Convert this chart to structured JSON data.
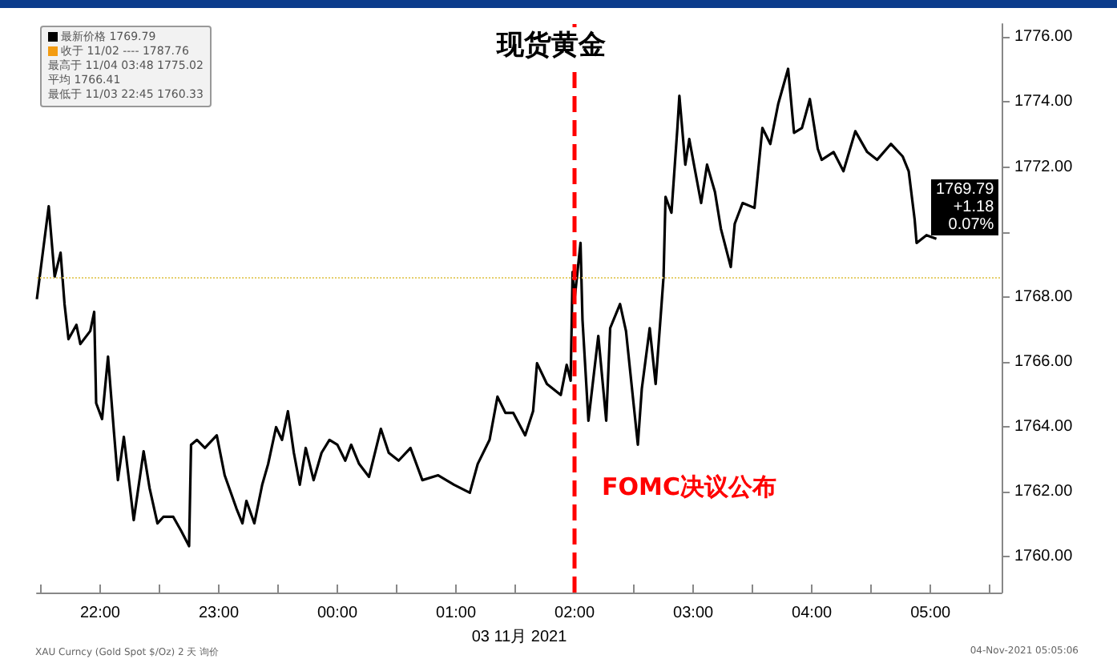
{
  "chart_data": {
    "type": "line",
    "title": "现货黄金",
    "xlabel": "03 11月 2021",
    "x": [
      "2021-11-03T21:28",
      "2021-11-03T21:34",
      "2021-11-03T21:37",
      "2021-11-03T21:40",
      "2021-11-03T21:42",
      "2021-11-03T21:44",
      "2021-11-03T21:48",
      "2021-11-03T21:50",
      "2021-11-03T21:55",
      "2021-11-03T21:57",
      "2021-11-03T21:58",
      "2021-11-03T22:01",
      "2021-11-03T22:04",
      "2021-11-03T22:07",
      "2021-11-03T22:09",
      "2021-11-03T22:12",
      "2021-11-03T22:17",
      "2021-11-03T22:22",
      "2021-11-03T22:25",
      "2021-11-03T22:29",
      "2021-11-03T22:32",
      "2021-11-03T22:37",
      "2021-11-03T22:41",
      "2021-11-03T22:45",
      "2021-11-03T22:46",
      "2021-11-03T22:49",
      "2021-11-03T22:53",
      "2021-11-03T22:59",
      "2021-11-03T23:03",
      "2021-11-03T23:09",
      "2021-11-03T23:12",
      "2021-11-03T23:14",
      "2021-11-03T23:18",
      "2021-11-03T23:22",
      "2021-11-03T23:25",
      "2021-11-03T23:29",
      "2021-11-03T23:32",
      "2021-11-03T23:35",
      "2021-11-03T23:38",
      "2021-11-03T23:41",
      "2021-11-03T23:44",
      "2021-11-03T23:48",
      "2021-11-03T23:52",
      "2021-11-03T23:56",
      "2021-11-04T00:00",
      "2021-11-04T00:04",
      "2021-11-04T00:07",
      "2021-11-04T00:11",
      "2021-11-04T00:16",
      "2021-11-04T00:22",
      "2021-11-04T00:26",
      "2021-11-04T00:31",
      "2021-11-04T00:37",
      "2021-11-04T00:43",
      "2021-11-04T00:51",
      "2021-11-04T00:59",
      "2021-11-04T01:07",
      "2021-11-04T01:11",
      "2021-11-04T01:17",
      "2021-11-04T01:21",
      "2021-11-04T01:25",
      "2021-11-04T01:29",
      "2021-11-04T01:35",
      "2021-11-04T01:39",
      "2021-11-04T01:41",
      "2021-11-04T01:46",
      "2021-11-04T01:53",
      "2021-11-04T01:56",
      "2021-11-04T01:58",
      "2021-11-04T01:59",
      "2021-11-04T02:00",
      "2021-11-04T02:03",
      "2021-11-04T02:04",
      "2021-11-04T02:07",
      "2021-11-04T02:12",
      "2021-11-04T02:16",
      "2021-11-04T02:18",
      "2021-11-04T02:23",
      "2021-11-04T02:26",
      "2021-11-04T02:32",
      "2021-11-04T02:34",
      "2021-11-04T02:38",
      "2021-11-04T02:41",
      "2021-11-04T02:44",
      "2021-11-04T02:45",
      "2021-11-04T02:46",
      "2021-11-04T02:49",
      "2021-11-04T02:52",
      "2021-11-04T02:53",
      "2021-11-04T02:56",
      "2021-11-04T02:58",
      "2021-11-04T03:01",
      "2021-11-04T03:04",
      "2021-11-04T03:07",
      "2021-11-04T03:11",
      "2021-11-04T03:14",
      "2021-11-04T03:19",
      "2021-11-04T03:21",
      "2021-11-04T03:25",
      "2021-11-04T03:31",
      "2021-11-04T03:35",
      "2021-11-04T03:39",
      "2021-11-04T03:43",
      "2021-11-04T03:48",
      "2021-11-04T03:51",
      "2021-11-04T03:55",
      "2021-11-04T03:59",
      "2021-11-04T04:03",
      "2021-11-04T04:05",
      "2021-11-04T04:11",
      "2021-11-04T04:16",
      "2021-11-04T04:22",
      "2021-11-04T04:28",
      "2021-11-04T04:33",
      "2021-11-04T04:40",
      "2021-11-04T04:46",
      "2021-11-04T04:49",
      "2021-11-04T04:52",
      "2021-11-04T04:53",
      "2021-11-04T04:58",
      "2021-11-04T05:03"
    ],
    "series": [
      {
        "color": "#000000",
        "values": [
          1767.93,
          1770.79,
          1768.62,
          1769.36,
          1767.78,
          1766.7,
          1767.14,
          1766.55,
          1766.95,
          1767.54,
          1764.73,
          1764.24,
          1766.16,
          1763.84,
          1762.36,
          1763.69,
          1761.13,
          1763.25,
          1762.12,
          1761.03,
          1761.23,
          1761.23,
          1760.8,
          1760.33,
          1763.45,
          1763.6,
          1763.35,
          1763.74,
          1762.51,
          1761.48,
          1761.03,
          1761.72,
          1761.03,
          1762.22,
          1762.86,
          1763.99,
          1763.6,
          1764.48,
          1763.2,
          1762.22,
          1763.35,
          1762.36,
          1763.2,
          1763.6,
          1763.45,
          1762.96,
          1763.45,
          1762.86,
          1762.46,
          1763.94,
          1763.2,
          1762.96,
          1763.35,
          1762.36,
          1762.51,
          1762.22,
          1761.97,
          1762.86,
          1763.6,
          1764.93,
          1764.43,
          1764.43,
          1763.74,
          1764.48,
          1765.96,
          1765.32,
          1764.98,
          1765.91,
          1765.42,
          1768.77,
          1767.93,
          1769.66,
          1767.29,
          1764.19,
          1766.8,
          1764.19,
          1767.04,
          1767.78,
          1766.95,
          1763.45,
          1765.17,
          1767.04,
          1765.32,
          1767.78,
          1768.62,
          1771.08,
          1770.59,
          1773.2,
          1774.19,
          1772.07,
          1772.86,
          1771.87,
          1770.89,
          1772.07,
          1771.23,
          1770.1,
          1768.92,
          1770.25,
          1770.89,
          1770.74,
          1773.2,
          1772.71,
          1773.94,
          1775.02,
          1773.05,
          1773.2,
          1774.09,
          1772.56,
          1772.22,
          1772.46,
          1771.87,
          1773.1,
          1772.46,
          1772.22,
          1772.71,
          1772.32,
          1771.87,
          1770.39,
          1769.66,
          1769.9,
          1769.79
        ]
      }
    ],
    "xlim": [
      "2021-11-03T21:28",
      "2021-11-04T05:36"
    ],
    "xticks": [
      {
        "value": "2021-11-03T21:30",
        "label": null
      },
      {
        "value": "2021-11-03T22:00",
        "label": "22:00"
      },
      {
        "value": "2021-11-03T22:30",
        "label": null
      },
      {
        "value": "2021-11-03T23:00",
        "label": "23:00"
      },
      {
        "value": "2021-11-03T23:30",
        "label": null
      },
      {
        "value": "2021-11-04T00:00",
        "label": "00:00"
      },
      {
        "value": "2021-11-04T00:30",
        "label": null
      },
      {
        "value": "2021-11-04T01:00",
        "label": "01:00"
      },
      {
        "value": "2021-11-04T01:30",
        "label": null
      },
      {
        "value": "2021-11-04T02:00",
        "label": "02:00"
      },
      {
        "value": "2021-11-04T02:30",
        "label": null
      },
      {
        "value": "2021-11-04T03:00",
        "label": "03:00"
      },
      {
        "value": "2021-11-04T03:30",
        "label": null
      },
      {
        "value": "2021-11-04T04:00",
        "label": "04:00"
      },
      {
        "value": "2021-11-04T04:30",
        "label": null
      },
      {
        "value": "2021-11-04T05:00",
        "label": "05:00"
      },
      {
        "value": "2021-11-04T05:30",
        "label": null
      }
    ],
    "ylim": [
      1758.9,
      1776.4
    ],
    "yticks": [
      {
        "value": 1760,
        "label": "1760.00"
      },
      {
        "value": 1762,
        "label": "1762.00"
      },
      {
        "value": 1764,
        "label": "1764.00"
      },
      {
        "value": 1766,
        "label": "1766.00"
      },
      {
        "value": 1768,
        "label": "1768.00"
      },
      {
        "value": 1770,
        "label": null
      },
      {
        "value": 1772,
        "label": "1772.00"
      },
      {
        "value": 1774,
        "label": "1774.00"
      },
      {
        "value": 1776,
        "label": "1776.00"
      }
    ],
    "ref_lines": [
      {
        "axis": "y",
        "value": 1768.61,
        "color": "#e6cf6e",
        "line_style": "dotted"
      },
      {
        "axis": "x",
        "value": "2021-11-04T02:00",
        "label": "FOMC决议公布",
        "color": "#ff0000",
        "line_style": "dashed"
      }
    ],
    "annotations": [
      "最新价格 1769.79",
      "收于 11/02 ---- 1787.76",
      "最高于 11/04 03:48 1775.02",
      "平均 1766.41",
      "最低于 11/03 22:45 1760.33",
      "1769.79\n+1.18\n0.07%",
      "XAU Curncy (Gold Spot $/Oz) 2 天 询价",
      "04-Nov-2021 05:05:06"
    ],
    "grid": false,
    "marker": "none",
    "line_style": "solid"
  }
}
